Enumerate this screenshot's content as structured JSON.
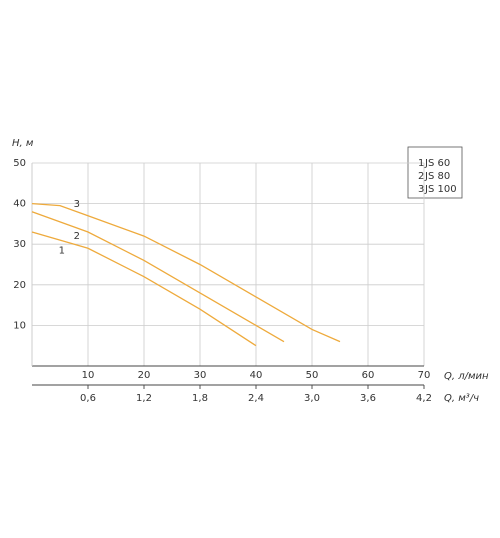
{
  "chart_data": {
    "type": "line",
    "y_label": "H, м",
    "x_label": "Q, л/мин",
    "x2_label": "Q, м³/ч",
    "xlim": [
      0,
      70
    ],
    "xticks": [
      10,
      20,
      30,
      40,
      50,
      60,
      70
    ],
    "x2lim": [
      0,
      4.2
    ],
    "x2ticks": [
      {
        "value": 0.6,
        "label": "0,6"
      },
      {
        "value": 1.2,
        "label": "1,2"
      },
      {
        "value": 1.8,
        "label": "1,8"
      },
      {
        "value": 2.4,
        "label": "2,4"
      },
      {
        "value": 3.0,
        "label": "3,0"
      },
      {
        "value": 3.6,
        "label": "3,6"
      },
      {
        "value": 4.2,
        "label": "4,2"
      }
    ],
    "ylim": [
      0,
      50
    ],
    "yticks": [
      10,
      20,
      30,
      40,
      50
    ],
    "grid": true,
    "series": [
      {
        "label": "1",
        "name": "JS 60",
        "color": "#eeaa3c",
        "x": [
          0,
          10,
          20,
          30,
          40
        ],
        "values": [
          33,
          29,
          22,
          14,
          5
        ]
      },
      {
        "label": "2",
        "name": "JS 80",
        "color": "#eeaa3c",
        "x": [
          0,
          10,
          20,
          30,
          40,
          45
        ],
        "values": [
          38,
          33,
          26,
          18,
          10,
          6
        ]
      },
      {
        "label": "3",
        "name": "JS 100",
        "color": "#eeaa3c",
        "x": [
          0,
          5,
          10,
          20,
          30,
          40,
          50,
          55
        ],
        "values": [
          40,
          39.5,
          37,
          32,
          25,
          17,
          9,
          6
        ]
      }
    ]
  }
}
